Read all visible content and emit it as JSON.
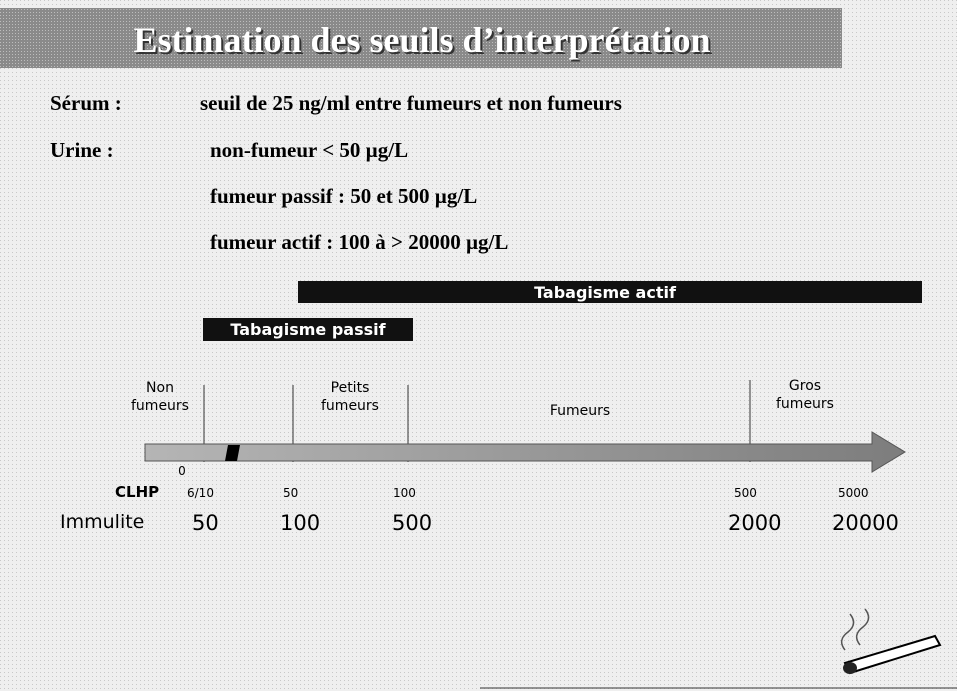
{
  "header": {
    "title": "Estimation des seuils d’interprétation"
  },
  "thresholds": [
    {
      "label": "Sérum :",
      "lines": [
        "seuil de 25 ng/ml entre fumeurs et non fumeurs"
      ]
    },
    {
      "label": "Urine :",
      "lines": [
        "non-fumeur < 50 µg/L",
        "fumeur passif : 50 et 500 µg/L",
        "fumeur actif : 100 à > 20000 µg/L"
      ]
    }
  ],
  "bands": {
    "active": "Tabagisme actif",
    "passive": "Tabagisme passif"
  },
  "zones": [
    "Non fumeurs",
    "Petits fumeurs",
    "Fumeurs",
    "Gros fumeurs"
  ],
  "scale": {
    "zero": "0",
    "rows": [
      {
        "label": "CLHP",
        "values": [
          "6/10",
          "50",
          "100",
          "500",
          "5000"
        ]
      },
      {
        "label": "Immulite",
        "values": [
          "50",
          "100",
          "500",
          "2000",
          "20000"
        ]
      }
    ]
  }
}
